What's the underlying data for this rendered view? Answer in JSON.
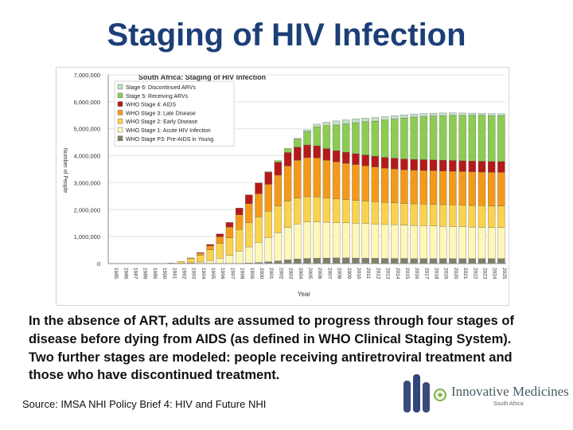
{
  "slide": {
    "title": "Staging of HIV Infection",
    "body": "In the absence of ART, adults are assumed to progress through four stages of disease before dying from AIDS (as defined in WHO Clinical Staging System). Two further stages are modeled: people receiving antiretroviral treatment and those who have discontinued treatment.",
    "source": "Source: IMSA NHI Policy Brief 4: HIV and Future NHI",
    "logo_text": "Innovative Medicines",
    "logo_subtext": "South Africa"
  },
  "chart_data": {
    "type": "bar",
    "stacked": true,
    "title": "South Africa: Staging of HIV Infection",
    "xlabel": "Year",
    "ylabel": "Number of People",
    "ylim": [
      0,
      7000000
    ],
    "yticks": [
      "0",
      "1,000,000",
      "2,000,000",
      "3,000,000",
      "4,000,000",
      "5,000,000",
      "6,000,000",
      "7,000,000"
    ],
    "ytick_values": [
      0,
      1000000,
      2000000,
      3000000,
      4000000,
      5000000,
      6000000,
      7000000
    ],
    "categories": [
      "1985",
      "1986",
      "1987",
      "1988",
      "1989",
      "1990",
      "1991",
      "1992",
      "1993",
      "1994",
      "1995",
      "1996",
      "1997",
      "1998",
      "1999",
      "2000",
      "2001",
      "2002",
      "2003",
      "2004",
      "2005",
      "2006",
      "2007",
      "2008",
      "2009",
      "2010",
      "2011",
      "2012",
      "2013",
      "2014",
      "2015",
      "2016",
      "2017",
      "2018",
      "2019",
      "2020",
      "2021",
      "2022",
      "2023",
      "2024",
      "2025"
    ],
    "legend_position": "top-left",
    "series": [
      {
        "name": "WHO Stage P3: Pre-AIDS in Young",
        "color": "#7f7f6a",
        "values": [
          0,
          0,
          0,
          0,
          0,
          0,
          0,
          0,
          0,
          0,
          0,
          0,
          5000,
          10000,
          20000,
          40000,
          70000,
          100000,
          140000,
          170000,
          190000,
          200000,
          205000,
          210000,
          210000,
          205000,
          200000,
          195000,
          190000,
          190000,
          190000,
          185000,
          185000,
          185000,
          185000,
          185000,
          185000,
          185000,
          185000,
          185000,
          185000
        ]
      },
      {
        "name": "WHO Stage 1: Acute HIV Infection",
        "color": "#fff7b8",
        "values": [
          0,
          0,
          0,
          0,
          0,
          0,
          0,
          10000,
          30000,
          60000,
          110000,
          200000,
          300000,
          450000,
          600000,
          750000,
          900000,
          1050000,
          1200000,
          1300000,
          1350000,
          1350000,
          1330000,
          1310000,
          1300000,
          1290000,
          1280000,
          1270000,
          1260000,
          1250000,
          1240000,
          1230000,
          1220000,
          1210000,
          1200000,
          1190000,
          1180000,
          1170000,
          1160000,
          1150000,
          1150000
        ]
      },
      {
        "name": "WHO Stage 2: Early Disease",
        "color": "#fbd24e",
        "values": [
          0,
          0,
          0,
          0,
          0,
          0,
          20000,
          70000,
          150000,
          250000,
          400000,
          550000,
          650000,
          800000,
          900000,
          950000,
          970000,
          980000,
          980000,
          960000,
          940000,
          920000,
          900000,
          880000,
          860000,
          850000,
          840000,
          830000,
          820000,
          810000,
          800000,
          800000,
          800000,
          800000,
          800000,
          800000,
          800000,
          800000,
          800000,
          800000,
          800000
        ]
      },
      {
        "name": "WHO Stage 3: Late Disease",
        "color": "#f39a1b",
        "values": [
          0,
          0,
          0,
          0,
          0,
          0,
          0,
          0,
          30000,
          80000,
          150000,
          250000,
          400000,
          550000,
          700000,
          850000,
          1000000,
          1150000,
          1300000,
          1400000,
          1450000,
          1450000,
          1400000,
          1370000,
          1350000,
          1330000,
          1310000,
          1290000,
          1270000,
          1260000,
          1250000,
          1250000,
          1250000,
          1250000,
          1250000,
          1250000,
          1250000,
          1250000,
          1250000,
          1250000,
          1250000
        ]
      },
      {
        "name": "WHO Stage 4: AIDS",
        "color": "#b51a1a",
        "values": [
          0,
          0,
          0,
          0,
          0,
          0,
          0,
          0,
          0,
          20000,
          50000,
          100000,
          170000,
          250000,
          330000,
          400000,
          450000,
          480000,
          500000,
          490000,
          470000,
          450000,
          430000,
          420000,
          410000,
          400000,
          400000,
          400000,
          400000,
          400000,
          400000,
          400000,
          400000,
          400000,
          400000,
          400000,
          400000,
          400000,
          400000,
          400000,
          400000
        ]
      },
      {
        "name": "Stage 5: Receiving ARVs",
        "color": "#8ccc52",
        "values": [
          0,
          0,
          0,
          0,
          0,
          0,
          0,
          0,
          0,
          0,
          0,
          0,
          0,
          0,
          0,
          0,
          20000,
          60000,
          150000,
          300000,
          500000,
          700000,
          850000,
          950000,
          1050000,
          1150000,
          1230000,
          1300000,
          1380000,
          1450000,
          1520000,
          1570000,
          1600000,
          1630000,
          1650000,
          1670000,
          1680000,
          1690000,
          1700000,
          1700000,
          1700000
        ]
      },
      {
        "name": "Stage 6: Discontinued ARVs",
        "color": "#c2e0c2",
        "values": [
          0,
          0,
          0,
          0,
          0,
          0,
          0,
          0,
          0,
          0,
          0,
          0,
          0,
          0,
          0,
          0,
          0,
          0,
          0,
          20000,
          60000,
          100000,
          130000,
          150000,
          150000,
          145000,
          140000,
          135000,
          130000,
          125000,
          120000,
          115000,
          110000,
          105000,
          100000,
          95000,
          90000,
          85000,
          80000,
          75000,
          70000
        ]
      }
    ]
  }
}
